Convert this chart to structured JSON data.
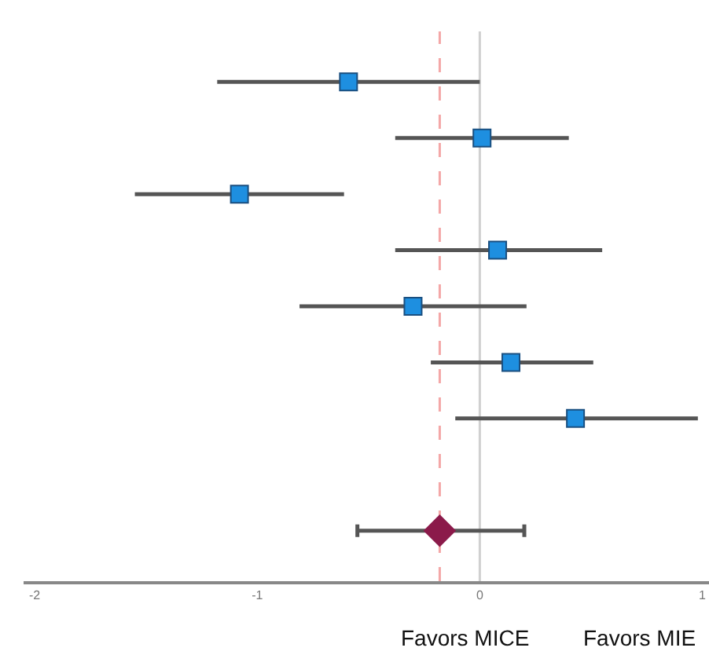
{
  "chart_data": {
    "type": "scatter",
    "orientation": "horizontal",
    "categories": [
      null,
      null,
      null,
      null,
      null,
      null,
      null,
      null,
      null
    ],
    "series": [
      {
        "color": "#1e8fe0",
        "marker": "square",
        "values": [
          -0.59,
          0.01,
          -1.08,
          0.08,
          -0.3,
          0.14,
          0.43,
          null,
          null
        ],
        "errors": [
          [
            -1.18,
            0
          ],
          [
            -0.38,
            0.4
          ],
          [
            -1.55,
            -0.61
          ],
          [
            -0.38,
            0.55
          ],
          [
            -0.81,
            0.21
          ],
          [
            -0.22,
            0.51
          ],
          [
            -0.11,
            0.98
          ],
          null,
          null
        ]
      },
      {
        "color": "#8b1a4a",
        "marker": "diamond",
        "values": [
          null,
          null,
          null,
          null,
          null,
          null,
          null,
          null,
          -0.18
        ],
        "errors": [
          null,
          null,
          null,
          null,
          null,
          null,
          null,
          null,
          [
            -0.55,
            0.2
          ]
        ]
      }
    ],
    "xlim": [
      -2.05,
      1.03
    ],
    "xticks": [
      -2,
      -1,
      0,
      1
    ],
    "tick_labels": "x",
    "grid": false,
    "ref_lines": [
      {
        "axis": "x",
        "value": 0,
        "color": "#d0d0d0",
        "line_style": "solid"
      },
      {
        "axis": "x",
        "value": -0.18,
        "color": "#f4a7a7",
        "line_style": "dashed"
      }
    ],
    "annotations": [
      "Favors MICE",
      "Favors MIE"
    ]
  }
}
